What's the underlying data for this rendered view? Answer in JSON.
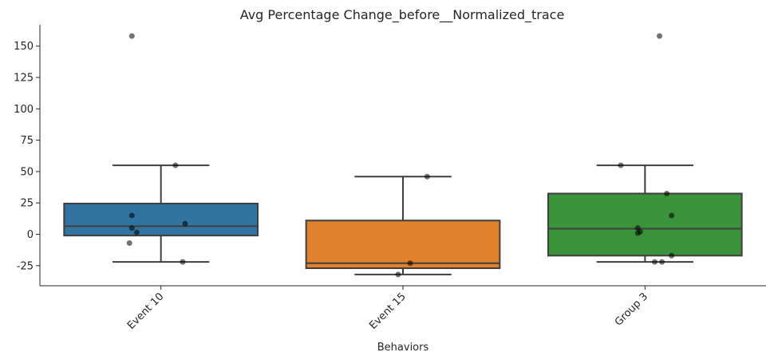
{
  "chart_data": {
    "type": "box",
    "title": "Avg Percentage Change_before__Normalized_trace",
    "xlabel": "Behaviors",
    "ylabel": "",
    "ylim": [
      -41,
      167
    ],
    "yticks": [
      -25,
      0,
      25,
      50,
      75,
      100,
      125,
      150
    ],
    "categories": [
      "Event 10",
      "Event 15",
      "Group 3"
    ],
    "colors": [
      "#3274a1",
      "#e1812c",
      "#3a923a"
    ],
    "boxes": [
      {
        "whisker_low": -22,
        "q1": -1,
        "median": 6.5,
        "q3": 24.5,
        "whisker_high": 55,
        "outliers": [
          158
        ]
      },
      {
        "whisker_low": -32,
        "q1": -27,
        "median": -23,
        "q3": 11,
        "whisker_high": 46,
        "outliers": []
      },
      {
        "whisker_low": -22,
        "q1": -17,
        "median": 4.5,
        "q3": 32.5,
        "whisker_high": 55,
        "outliers": [
          158
        ]
      }
    ],
    "points": [
      [
        {
          "jitter": -0.12,
          "y": 158
        },
        {
          "jitter": 0.06,
          "y": 55
        },
        {
          "jitter": -0.12,
          "y": 15
        },
        {
          "jitter": 0.1,
          "y": 8.5
        },
        {
          "jitter": -0.12,
          "y": 5
        },
        {
          "jitter": -0.1,
          "y": 1.5
        },
        {
          "jitter": -0.13,
          "y": -7
        },
        {
          "jitter": 0.09,
          "y": -22
        }
      ],
      [
        {
          "jitter": 0.1,
          "y": 46
        },
        {
          "jitter": 0.03,
          "y": -23
        },
        {
          "jitter": -0.02,
          "y": -32
        }
      ],
      [
        {
          "jitter": 0.06,
          "y": 158
        },
        {
          "jitter": -0.1,
          "y": 55
        },
        {
          "jitter": 0.09,
          "y": 32.5
        },
        {
          "jitter": 0.11,
          "y": 15
        },
        {
          "jitter": -0.03,
          "y": 5
        },
        {
          "jitter": -0.02,
          "y": 2
        },
        {
          "jitter": -0.03,
          "y": 1
        },
        {
          "jitter": 0.11,
          "y": -17
        },
        {
          "jitter": 0.07,
          "y": -22
        },
        {
          "jitter": 0.04,
          "y": -22
        }
      ]
    ]
  }
}
